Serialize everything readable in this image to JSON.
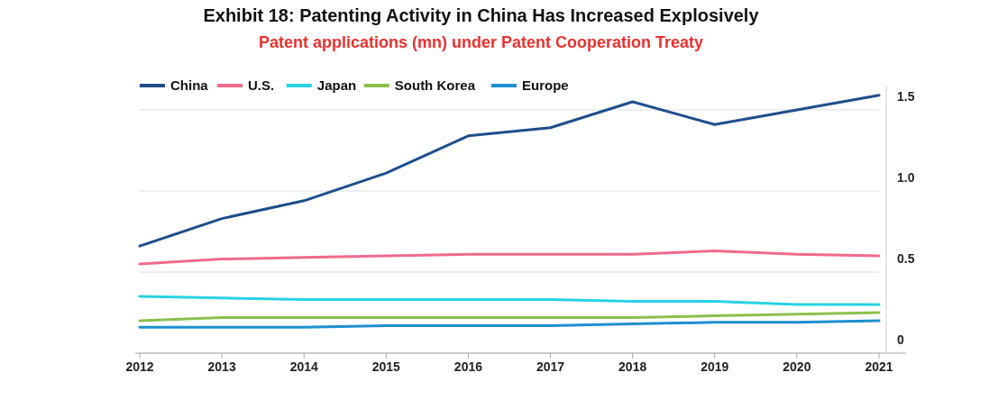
{
  "chart_data": {
    "type": "line",
    "title": "Exhibit 18: Patenting Activity in China Has Increased Explosively",
    "subtitle": "Patent applications (mn) under Patent Cooperation Treaty",
    "categories": [
      "2012",
      "2013",
      "2014",
      "2015",
      "2016",
      "2017",
      "2018",
      "2019",
      "2020",
      "2021"
    ],
    "series": [
      {
        "name": "China",
        "color": "#1f4e8c",
        "values": [
          0.66,
          0.83,
          0.94,
          1.11,
          1.34,
          1.39,
          1.55,
          1.41,
          1.5,
          1.59
        ]
      },
      {
        "name": "U.S.",
        "color": "#f06a8c",
        "values": [
          0.55,
          0.58,
          0.59,
          0.6,
          0.61,
          0.61,
          0.61,
          0.63,
          0.61,
          0.6
        ]
      },
      {
        "name": "Japan",
        "color": "#27d3e6",
        "values": [
          0.35,
          0.34,
          0.33,
          0.33,
          0.33,
          0.33,
          0.32,
          0.32,
          0.3,
          0.3
        ]
      },
      {
        "name": "South Korea",
        "color": "#8cbf4e",
        "values": [
          0.2,
          0.22,
          0.22,
          0.22,
          0.22,
          0.22,
          0.22,
          0.23,
          0.24,
          0.25
        ]
      },
      {
        "name": "Europe",
        "color": "#1e8fd0",
        "values": [
          0.16,
          0.16,
          0.16,
          0.17,
          0.17,
          0.17,
          0.18,
          0.19,
          0.19,
          0.2
        ]
      }
    ],
    "ylim": [
      0,
      1.65
    ],
    "yticks": [
      0,
      0.5,
      {
        "value": 1,
        "label": "1.0"
      },
      1.5
    ],
    "grid": "y",
    "legend": "top left",
    "line_style": "solid",
    "marker": "none"
  }
}
